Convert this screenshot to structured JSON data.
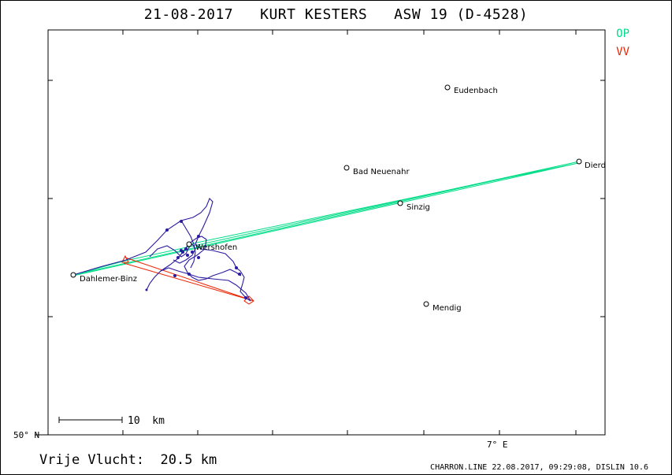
{
  "title": "21-08-2017   KURT KESTERS   ASW 19 (D-4528)",
  "legend": {
    "op": {
      "label": "OP",
      "color": "#00dd88"
    },
    "vv": {
      "label": "VV",
      "color": "#ee2200"
    }
  },
  "track_color": "#2a1aa0",
  "scale_bar_label": "10  km",
  "axis_labels": {
    "lat": "50° N",
    "lon": "7° E"
  },
  "places": [
    {
      "name": "Eudenbach"
    },
    {
      "name": "Bad Neuenahr"
    },
    {
      "name": "Dierdorf",
      "shown": "Dierd"
    },
    {
      "name": "Sinzig"
    },
    {
      "name": "Wershofen"
    },
    {
      "name": "Dahlemer-Binz"
    },
    {
      "name": "Mendig"
    }
  ],
  "flight_label": "Vrije Vlucht:",
  "flight_distance": "20.5 km",
  "footer": "CHARRON.LINE 22.08.2017, 09:29:08, DISLIN 10.6"
}
